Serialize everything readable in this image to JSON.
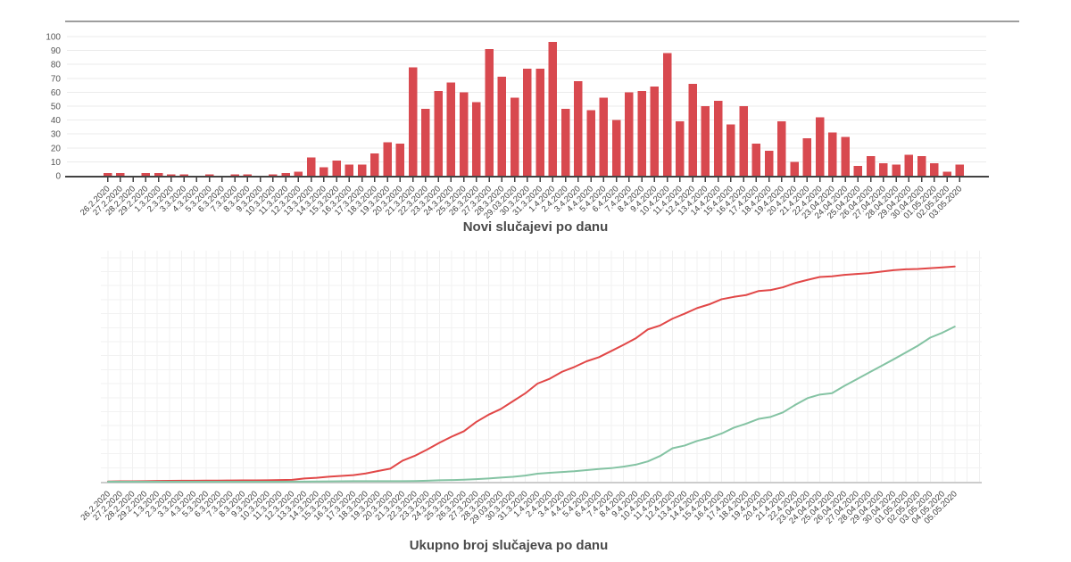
{
  "page": {
    "background": "#ffffff"
  },
  "chart_data": [
    {
      "type": "bar",
      "title": "Novi slučajevi po danu",
      "xlabel": "",
      "ylabel": "",
      "ylim": [
        0,
        100
      ],
      "yticks": [
        0,
        10,
        20,
        30,
        40,
        50,
        60,
        70,
        80,
        90,
        100
      ],
      "grid": "horizontal",
      "legend": "none",
      "bar_color": "#d8494f",
      "axis_color": "#424242",
      "grid_color": "#ebebeb",
      "top_rule_color": "#9e9e9e",
      "tick_label_color": "#3f3f3f",
      "ytick_label_color": "#565656",
      "title_color": "#4a4a4a",
      "categories": [
        "26.2.2020",
        "27.2.2020",
        "28.2.2020",
        "29.2.2020",
        "1.3.2020",
        "2.3.2020",
        "3.3.2020",
        "4.3.2020",
        "5.3.2020",
        "6.3.2020",
        "7.3.2020",
        "8.3.2020",
        "9.3.2020",
        "10.3.2020",
        "11.3.2020",
        "12.3.2020",
        "13.3.2020",
        "14.3.2020",
        "15.3.2020",
        "16.3.2020",
        "17.3.2020",
        "18.3.2020",
        "19.3.2020",
        "20.3.2020",
        "21.3.2020",
        "22.3.2020",
        "23.3.2020",
        "24.3.2020",
        "25.3.2020",
        "26.3.2020",
        "27.3.2020",
        "28.3.2020",
        "29.03.2020",
        "30.3.2020",
        "31.3.2020",
        "1.4.2020",
        "2.4.2020",
        "3.4.2020",
        "4.4.2020",
        "5.4.2020",
        "6.4.2020",
        "7.4.2020",
        "8.4.2020",
        "9.4.2020",
        "10.4.2020",
        "11.4.2020",
        "12.4.2020",
        "13.4.2020",
        "14.4.2020",
        "15.4.2020",
        "16.4.2020",
        "17.4.2020",
        "18.4.2020",
        "19.4.2020",
        "20.4.2020",
        "21.4.2020",
        "22.4.2020",
        "23.04.2020",
        "24.04.2020",
        "25.04.2020",
        "26.04.2020",
        "27.04.2020",
        "28.04.2020",
        "29.04.2020",
        "30.04.2020",
        "01.05.2020",
        "02.05.2020",
        "03.05.2020"
      ],
      "values": [
        2,
        2,
        0,
        2,
        2,
        1,
        1,
        0,
        1,
        0,
        1,
        1,
        0,
        1,
        2,
        3,
        13,
        6,
        11,
        8,
        8,
        16,
        24,
        23,
        78,
        48,
        61,
        67,
        60,
        53,
        91,
        71,
        56,
        77,
        77,
        96,
        48,
        68,
        47,
        56,
        40,
        60,
        61,
        64,
        88,
        39,
        66,
        50,
        54,
        37,
        50,
        23,
        18,
        39,
        10,
        27,
        42,
        31,
        28,
        7,
        14,
        9,
        8,
        15,
        14,
        9,
        3,
        8
      ]
    },
    {
      "type": "line",
      "title": "Ukupno broj slučajeva po danu",
      "xlabel": "",
      "ylabel": "",
      "ylim": [
        0,
        2250
      ],
      "grid": "both",
      "legend": "none",
      "axis_color": "#cccccc",
      "grid_color": "#f2f2f2",
      "tick_label_color": "#3f3f3f",
      "title_color": "#4a4a4a",
      "categories": [
        "26.2.2020",
        "27.2.2020",
        "28.2.2020",
        "29.2.2020",
        "1.3.2020",
        "2.3.2020",
        "3.3.2020",
        "4.3.2020",
        "5.3.2020",
        "6.3.2020",
        "7.3.2020",
        "8.3.2020",
        "9.3.2020",
        "10.3.2020",
        "11.3.2020",
        "12.3.2020",
        "13.3.2020",
        "14.3.2020",
        "15.3.2020",
        "16.3.2020",
        "17.3.2020",
        "18.3.2020",
        "19.3.2020",
        "20.3.2020",
        "21.3.2020",
        "22.3.2020",
        "23.3.2020",
        "24.3.2020",
        "25.3.2020",
        "26.3.2020",
        "27.3.2020",
        "28.3.2020",
        "29.03.2020",
        "30.3.2020",
        "31.3.2020",
        "1.4.2020",
        "2.4.2020",
        "3.4.2020",
        "4.4.2020",
        "5.4.2020",
        "6.4.2020",
        "7.4.2020",
        "8.4.2020",
        "9.4.2020",
        "10.4.2020",
        "11.4.2020",
        "12.4.2020",
        "13.4.2020",
        "14.4.2020",
        "15.4.2020",
        "16.4.2020",
        "17.4.2020",
        "18.4.2020",
        "19.4.2020",
        "20.4.2020",
        "21.4.2020",
        "22.4.2020",
        "23.04.2020",
        "24.04.2020",
        "25.04.2020",
        "26.04.2020",
        "27.04.2020",
        "28.04.2020",
        "29.04.2020",
        "30.04.2020",
        "01.05.2020",
        "02.05.2020",
        "03.05.2020",
        "04.05.2020",
        "05.05.2020"
      ],
      "series": [
        {
          "name": "red",
          "color": "#e14747",
          "values": [
            2,
            4,
            4,
            6,
            8,
            9,
            10,
            10,
            11,
            11,
            12,
            13,
            13,
            14,
            16,
            19,
            32,
            38,
            49,
            57,
            65,
            81,
            105,
            128,
            206,
            254,
            315,
            382,
            442,
            495,
            586,
            657,
            713,
            790,
            867,
            963,
            1011,
            1079,
            1126,
            1182,
            1222,
            1282,
            1343,
            1407,
            1495,
            1534,
            1600,
            1650,
            1704,
            1741,
            1791,
            1814,
            1832,
            1871,
            1881,
            1908,
            1950,
            1981,
            2009,
            2016,
            2030,
            2039,
            2047,
            2062,
            2076,
            2085,
            2088,
            2096,
            2103,
            2112
          ]
        },
        {
          "name": "green",
          "color": "#84c3a3",
          "values": [
            0,
            0,
            0,
            0,
            0,
            0,
            0,
            0,
            0,
            0,
            0,
            0,
            0,
            0,
            0,
            1,
            1,
            2,
            3,
            4,
            5,
            5,
            5,
            5,
            6,
            7,
            10,
            14,
            16,
            20,
            25,
            32,
            40,
            48,
            60,
            79,
            88,
            95,
            103,
            114,
            125,
            133,
            148,
            167,
            200,
            253,
            328,
            355,
            400,
            431,
            473,
            530,
            570,
            616,
            636,
            680,
            754,
            820,
            855,
            869,
            940,
            1005,
            1070,
            1135,
            1200,
            1267,
            1335,
            1414,
            1463,
            1522
          ]
        }
      ]
    }
  ]
}
